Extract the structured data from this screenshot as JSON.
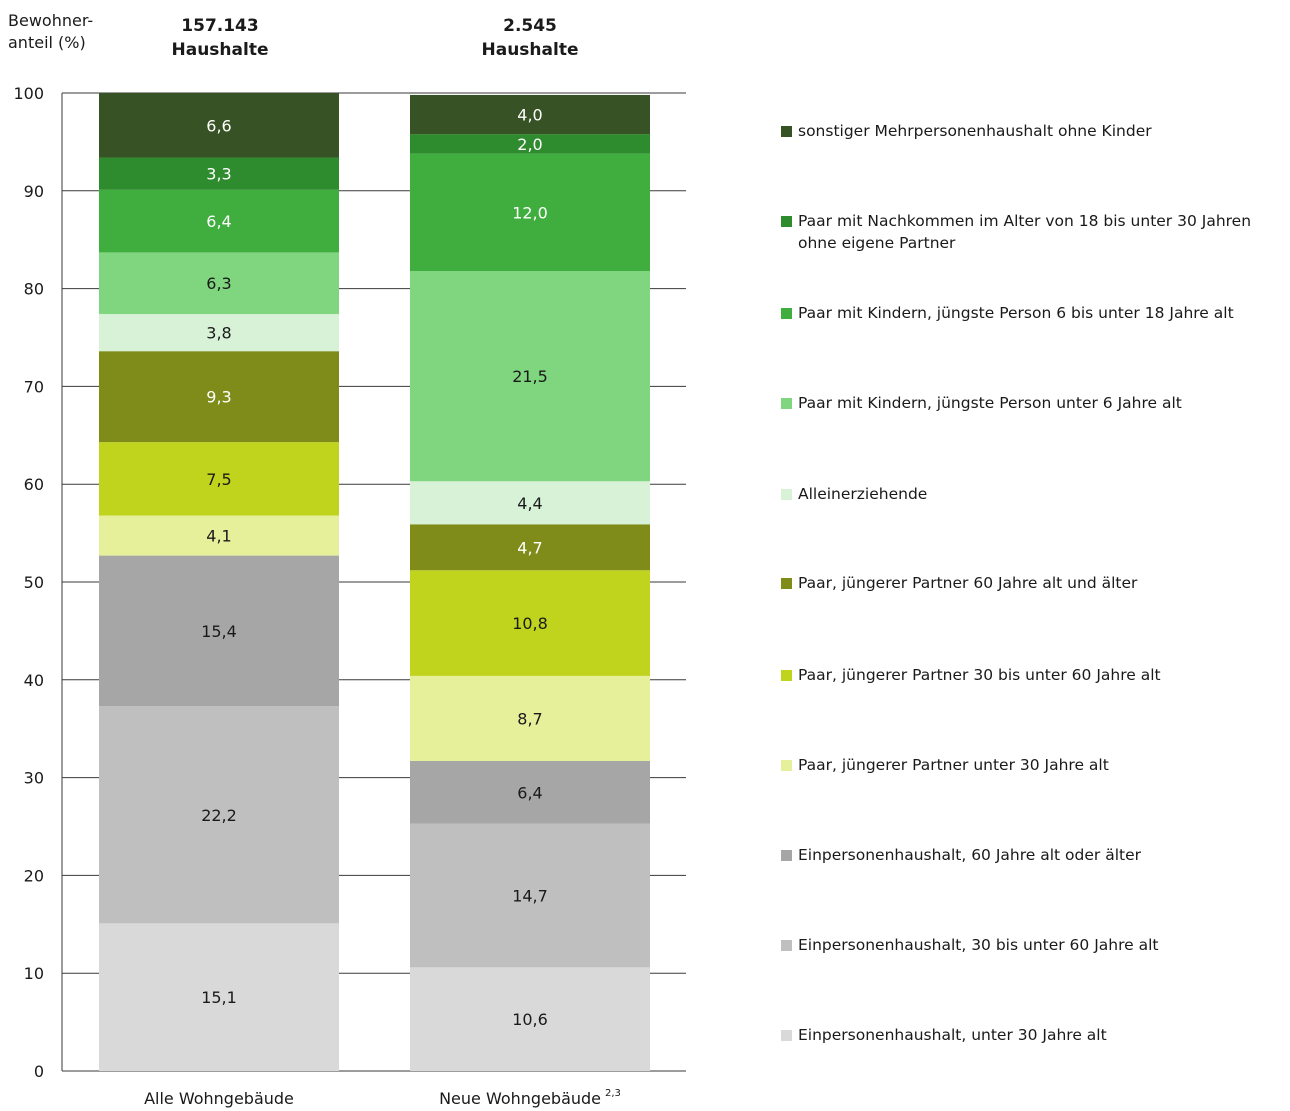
{
  "header": {
    "ylabel": "Bewohner-\nanteil (%)",
    "bar1_top": "157.143",
    "bar1_bottom": "Haushalte",
    "bar2_top": "2.545",
    "bar2_bottom": "Haushalte"
  },
  "chart_data": {
    "type": "bar",
    "stacked": true,
    "ylim": [
      0,
      100
    ],
    "yticks": [
      "0",
      "10",
      "20",
      "30",
      "40",
      "50",
      "60",
      "70",
      "80",
      "90",
      "100"
    ],
    "grid": true,
    "legend_position": "right",
    "categories": [
      "Alle Wohngebäude",
      "Neue Wohngebäude"
    ],
    "category_superscripts": [
      "",
      "2,3"
    ],
    "series": [
      {
        "name": "Einpersonenhaushalt, unter 30 Jahre alt",
        "color": "#d9d9d9",
        "text_color": "#1a1a1a",
        "values": [
          15.1,
          10.6
        ],
        "labels": [
          "15,1",
          "10,6"
        ]
      },
      {
        "name": "Einpersonenhaushalt, 30 bis unter 60 Jahre alt",
        "color": "#bfbfbf",
        "text_color": "#1a1a1a",
        "values": [
          22.2,
          14.7
        ],
        "labels": [
          "22,2",
          "14,7"
        ]
      },
      {
        "name": "Einpersonenhaushalt, 60 Jahre alt oder älter",
        "color": "#a6a6a6",
        "text_color": "#1a1a1a",
        "values": [
          15.4,
          6.4
        ],
        "labels": [
          "15,4",
          "6,4"
        ]
      },
      {
        "name": "Paar, jüngerer Partner unter 30 Jahre alt",
        "color": "#e6f09a",
        "text_color": "#1a1a1a",
        "values": [
          4.1,
          8.7
        ],
        "labels": [
          "4,1",
          "8,7"
        ]
      },
      {
        "name": "Paar, jüngerer Partner 30 bis unter 60 Jahre alt",
        "color": "#c0d41e",
        "text_color": "#1a1a1a",
        "values": [
          7.5,
          10.8
        ],
        "labels": [
          "7,5",
          "10,8"
        ]
      },
      {
        "name": "Paar, jüngerer Partner 60 Jahre alt und älter",
        "color": "#7f8c1a",
        "text_color": "#ffffff",
        "values": [
          9.3,
          4.7
        ],
        "labels": [
          "9,3",
          "4,7"
        ]
      },
      {
        "name": "Alleinerziehende",
        "color": "#d7f2d7",
        "text_color": "#1a1a1a",
        "values": [
          3.8,
          4.4
        ],
        "labels": [
          "3,8",
          "4,4"
        ]
      },
      {
        "name": "Paar mit Kindern, jüngste Person unter 6 Jahre alt",
        "color": "#7fd67f",
        "text_color": "#1a1a1a",
        "values": [
          6.3,
          21.5
        ],
        "labels": [
          "6,3",
          "21,5"
        ]
      },
      {
        "name": "Paar mit Kindern, jüngste Person 6 bis unter 18 Jahre alt",
        "color": "#3fae3f",
        "text_color": "#ffffff",
        "values": [
          6.4,
          12.0
        ],
        "labels": [
          "6,4",
          "12,0"
        ]
      },
      {
        "name": "Paar mit Nachkommen im Alter von 18 bis unter 30 Jahren\nohne eigene Partner",
        "color": "#2e8b2e",
        "text_color": "#ffffff",
        "values": [
          3.3,
          2.0
        ],
        "labels": [
          "3,3",
          "2,0"
        ]
      },
      {
        "name": "sonstiger Mehrpersonenhaushalt ohne Kinder",
        "color": "#375224",
        "text_color": "#ffffff",
        "values": [
          6.6,
          4.0
        ],
        "labels": [
          "6,6",
          "4,0"
        ]
      }
    ]
  }
}
